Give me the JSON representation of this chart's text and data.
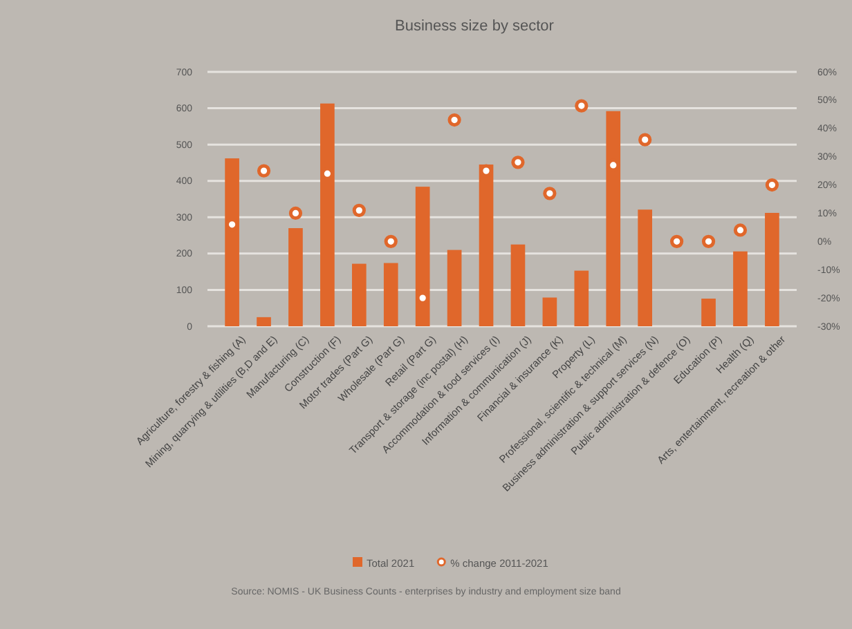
{
  "chart_data": {
    "type": "bar",
    "title": "Business size by sector",
    "categories": [
      "Agriculture, forestry & fishing (A)",
      "Mining, quarrying & utilities (B,D and E)",
      "Manufacturing (C)",
      "Construction (F)",
      "Motor trades (Part G)",
      "Wholesale (Part G)",
      "Retail (Part G)",
      "Transport & storage (inc postal) (H)",
      "Accommodation & food services (I)",
      "Information & communication (J)",
      "Financial & insurance (K)",
      "Property (L)",
      "Professional, scientific & technical (M)",
      "Business administration & support services (N)",
      "Public administration & defence (O)",
      "Education (P)",
      "Health (Q)",
      "Arts, entertainment, recreation & other"
    ],
    "series": [
      {
        "name": "Total 2021",
        "color": "#e0672b",
        "values": [
          462,
          25,
          270,
          613,
          172,
          174,
          384,
          210,
          445,
          225,
          79,
          153,
          592,
          321,
          0,
          76,
          206,
          312
        ]
      },
      {
        "name": "% change 2011-2021",
        "type": "scatter",
        "axis": "y2",
        "color": "#e0672b",
        "values": [
          6,
          25,
          10,
          24,
          11,
          0,
          -20,
          43,
          25,
          28,
          17,
          48,
          27,
          36,
          0,
          0,
          4,
          20
        ]
      }
    ],
    "ylim": [
      0,
      700
    ],
    "yticks": [
      0,
      100,
      200,
      300,
      400,
      500,
      600,
      700
    ],
    "y2lim": [
      -30,
      60
    ],
    "y2ticks": [
      {
        "value": -30,
        "label": "-30%"
      },
      {
        "value": -20,
        "label": "-20%"
      },
      {
        "value": -10,
        "label": "-10%"
      },
      {
        "value": 0,
        "label": "0%"
      },
      {
        "value": 10,
        "label": "10%"
      },
      {
        "value": 20,
        "label": "20%"
      },
      {
        "value": 30,
        "label": "30%"
      },
      {
        "value": 40,
        "label": "40%"
      },
      {
        "value": 50,
        "label": "50%"
      },
      {
        "value": 60,
        "label": "60%"
      }
    ],
    "grid": "y",
    "legend": "bottom",
    "marker": "circle",
    "annotations": [
      "Source: NOMIS - UK Business Counts - enterprises by industry and employment size band"
    ]
  }
}
